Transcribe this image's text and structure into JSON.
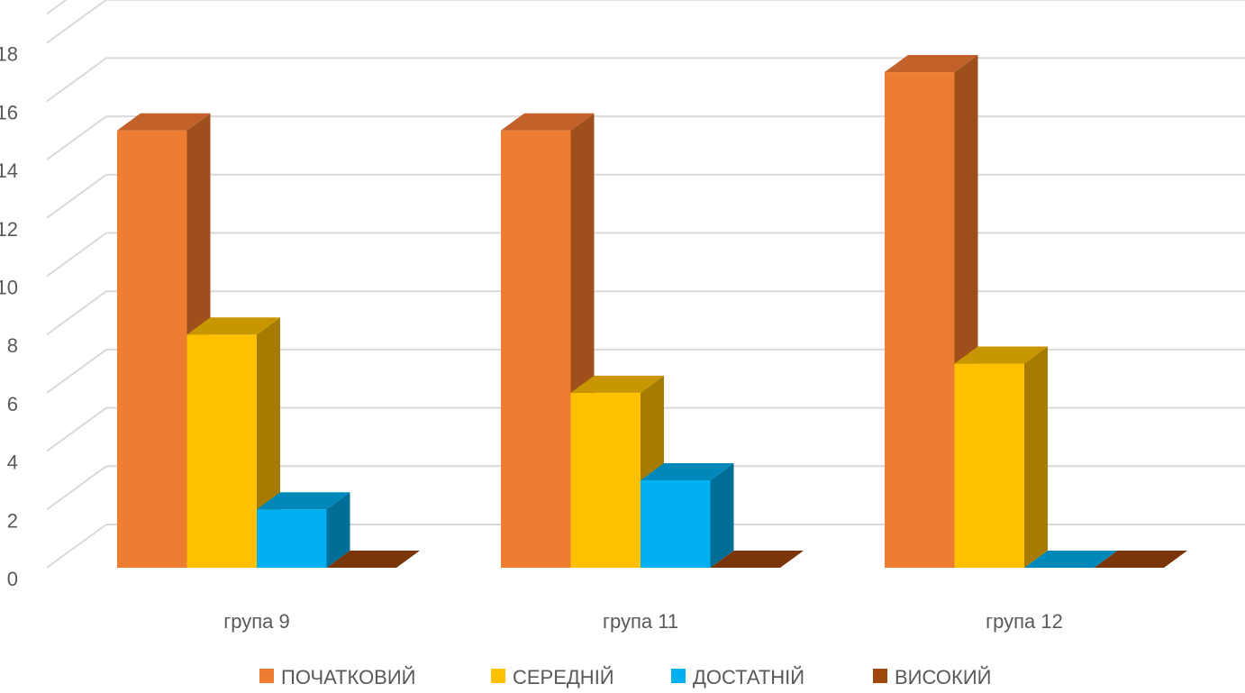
{
  "chart_data": {
    "type": "bar",
    "style": "3d-clustered-column",
    "categories": [
      "група 9",
      "група 11",
      "група 12"
    ],
    "series": [
      {
        "name": "ПОЧАТКОВИЙ",
        "values": [
          15,
          15,
          17
        ],
        "color": "#ED7D31",
        "side": "#9E4F1C",
        "top": "#C2612A"
      },
      {
        "name": "СЕРЕДНІЙ",
        "values": [
          8,
          6,
          7
        ],
        "color": "#FFC000",
        "side": "#A67C00",
        "top": "#C79600"
      },
      {
        "name": "ДОСТАТНІЙ",
        "values": [
          2,
          3,
          0
        ],
        "color": "#00B0F0",
        "side": "#006F98",
        "top": "#0088BB"
      },
      {
        "name": "ВИСОКИЙ",
        "values": [
          0,
          0,
          0
        ],
        "color": "#9E480E",
        "side": "#6A2F08",
        "top": "#7A3609"
      }
    ],
    "yticks": [
      "0",
      "2",
      "4",
      "6",
      "8",
      "10",
      "12",
      "14",
      "16",
      "18"
    ],
    "ylim": [
      0,
      19
    ],
    "grid": true,
    "legend_position": "bottom"
  }
}
